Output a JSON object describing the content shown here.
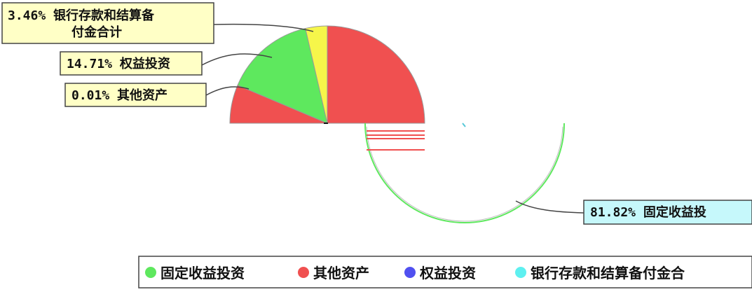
{
  "chart_data": {
    "type": "pie",
    "title": "",
    "slices": [
      {
        "label": "固定收益投资",
        "value": 81.82,
        "display": "81.82%",
        "callout_text": "81.82% 固定收益投",
        "color": "#5ee85e"
      },
      {
        "label": "其他资产",
        "value": 0.01,
        "display": "0.01%",
        "callout_text": "0.01% 其他资产",
        "color": "#f05050"
      },
      {
        "label": "权益投资",
        "value": 14.71,
        "display": "14.71%",
        "callout_text": "14.71% 权益投资",
        "color": "#5050f0"
      },
      {
        "label": "银行存款和结算备付金合计",
        "value": 3.46,
        "display": "3.46%",
        "callout_line1": "3.46% 银行存款和结算备",
        "callout_line2": "付金合计",
        "color": "#5ef0f0"
      }
    ],
    "legend": {
      "placement": "bottom",
      "items": [
        "固定收益投资",
        "其他资产",
        "权益投资",
        "银行存款和结算备付金合"
      ]
    },
    "rendered_colors": {
      "red": "#f05050",
      "green": "#5ee85e",
      "yellow": "#f6f64a",
      "callout_yellow": "#ffffc6",
      "callout_cyan": "#c6f8fb"
    }
  }
}
